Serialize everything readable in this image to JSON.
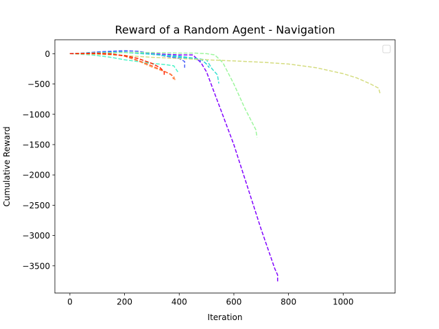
{
  "chart_data": {
    "type": "line",
    "title": "Reward of a Random Agent - Navigation",
    "xlabel": "Iteration",
    "ylabel": "Cumulative Reward",
    "xlim": [
      -55,
      1190
    ],
    "ylim": [
      -3950,
      230
    ],
    "xticks": [
      0,
      200,
      400,
      600,
      800,
      1000
    ],
    "yticks": [
      0,
      -500,
      -1000,
      -1500,
      -2000,
      -2500,
      -3000,
      -3500
    ],
    "tick_labels_x": [
      "0",
      "200",
      "400",
      "600",
      "800",
      "1000"
    ],
    "tick_labels_y": [
      "0",
      "−500",
      "−1000",
      "−1500",
      "−2000",
      "−2500",
      "−3000",
      "−3500"
    ],
    "grid": false,
    "legend": {
      "position": "top-right",
      "entries": []
    },
    "line_style": "dashed",
    "series": [
      {
        "color": "#8000ff",
        "points": [
          [
            0,
            0
          ],
          [
            100,
            10
          ],
          [
            200,
            20
          ],
          [
            300,
            0
          ],
          [
            400,
            -20
          ],
          [
            450,
            -20
          ],
          [
            480,
            -150
          ],
          [
            500,
            -300
          ],
          [
            550,
            -900
          ],
          [
            600,
            -1500
          ],
          [
            650,
            -2200
          ],
          [
            700,
            -2900
          ],
          [
            750,
            -3550
          ],
          [
            760,
            -3650
          ],
          [
            760,
            -3780
          ]
        ]
      },
      {
        "color": "#4b5ff8",
        "points": [
          [
            0,
            0
          ],
          [
            50,
            10
          ],
          [
            100,
            30
          ],
          [
            150,
            40
          ],
          [
            200,
            50
          ],
          [
            250,
            40
          ],
          [
            300,
            0
          ],
          [
            350,
            -40
          ],
          [
            400,
            -80
          ],
          [
            420,
            -130
          ],
          [
            420,
            -230
          ]
        ]
      },
      {
        "color": "#1996f3",
        "points": [
          [
            0,
            0
          ],
          [
            100,
            20
          ],
          [
            200,
            30
          ],
          [
            300,
            -10
          ],
          [
            400,
            -60
          ],
          [
            460,
            -90
          ],
          [
            480,
            -120
          ]
        ]
      },
      {
        "color": "#1bcfd8",
        "points": [
          [
            0,
            0
          ],
          [
            100,
            10
          ],
          [
            200,
            20
          ],
          [
            300,
            -10
          ],
          [
            400,
            -40
          ],
          [
            480,
            -90
          ],
          [
            500,
            -170
          ],
          [
            510,
            -230
          ]
        ]
      },
      {
        "color": "#37e0d0",
        "points": [
          [
            0,
            0
          ],
          [
            100,
            15
          ],
          [
            200,
            20
          ],
          [
            300,
            -10
          ],
          [
            400,
            -50
          ],
          [
            500,
            -100
          ],
          [
            520,
            -250
          ],
          [
            540,
            -350
          ],
          [
            545,
            -490
          ]
        ]
      },
      {
        "color": "#4df4c8",
        "points": [
          [
            0,
            0
          ],
          [
            80,
            -20
          ],
          [
            150,
            -60
          ],
          [
            200,
            -100
          ],
          [
            250,
            -130
          ],
          [
            300,
            -160
          ],
          [
            350,
            -180
          ],
          [
            380,
            -200
          ],
          [
            395,
            -300
          ]
        ]
      },
      {
        "color": "#9cf69c",
        "points": [
          [
            0,
            0
          ],
          [
            100,
            10
          ],
          [
            200,
            20
          ],
          [
            300,
            20
          ],
          [
            400,
            10
          ],
          [
            460,
            10
          ],
          [
            500,
            0
          ],
          [
            530,
            -20
          ],
          [
            560,
            -150
          ],
          [
            600,
            -500
          ],
          [
            640,
            -900
          ],
          [
            680,
            -1250
          ],
          [
            685,
            -1380
          ]
        ]
      },
      {
        "color": "#d4dc7f",
        "points": [
          [
            0,
            0
          ],
          [
            100,
            -10
          ],
          [
            200,
            -30
          ],
          [
            300,
            -60
          ],
          [
            400,
            -80
          ],
          [
            500,
            -100
          ],
          [
            600,
            -120
          ],
          [
            700,
            -140
          ],
          [
            800,
            -170
          ],
          [
            900,
            -230
          ],
          [
            1000,
            -330
          ],
          [
            1050,
            -400
          ],
          [
            1100,
            -500
          ],
          [
            1130,
            -570
          ],
          [
            1135,
            -660
          ]
        ]
      },
      {
        "color": "#ff9c5a",
        "points": [
          [
            0,
            0
          ],
          [
            100,
            10
          ],
          [
            150,
            0
          ],
          [
            200,
            -40
          ],
          [
            250,
            -120
          ],
          [
            300,
            -220
          ],
          [
            350,
            -300
          ],
          [
            380,
            -370
          ],
          [
            385,
            -440
          ]
        ]
      },
      {
        "color": "#ff6633",
        "points": [
          [
            0,
            0
          ],
          [
            100,
            10
          ],
          [
            150,
            0
          ],
          [
            200,
            -40
          ],
          [
            250,
            -110
          ],
          [
            300,
            -200
          ],
          [
            340,
            -280
          ],
          [
            370,
            -340
          ],
          [
            380,
            -420
          ]
        ]
      },
      {
        "color": "#ff2000",
        "points": [
          [
            0,
            0
          ],
          [
            100,
            0
          ],
          [
            150,
            -10
          ],
          [
            200,
            -30
          ],
          [
            250,
            -80
          ],
          [
            300,
            -160
          ],
          [
            330,
            -230
          ],
          [
            345,
            -300
          ],
          [
            345,
            -370
          ]
        ]
      }
    ]
  }
}
